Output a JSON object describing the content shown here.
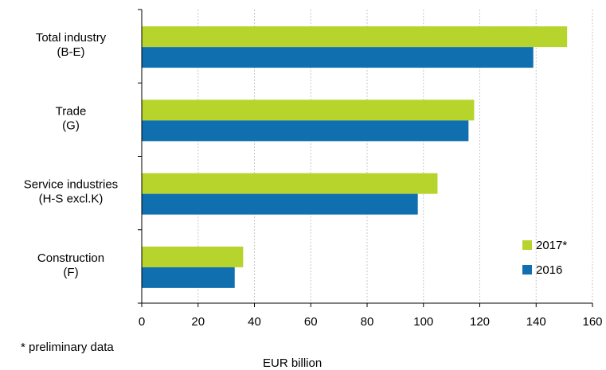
{
  "chart_data": {
    "type": "bar",
    "orientation": "horizontal",
    "categories": [
      [
        "Total industry",
        "(B-E)"
      ],
      [
        "Trade",
        "(G)"
      ],
      [
        "Service industries",
        "(H-S excl.K)"
      ],
      [
        "Construction",
        "(F)"
      ]
    ],
    "series": [
      {
        "name": "2017*",
        "color": "#b6d42c",
        "values": [
          151,
          118,
          105,
          36
        ]
      },
      {
        "name": "2016",
        "color": "#0f6faf",
        "values": [
          139,
          116,
          98,
          33
        ]
      }
    ],
    "xlabel": "EUR billion",
    "xlim": [
      0,
      160
    ],
    "xticks": [
      0,
      20,
      40,
      60,
      80,
      100,
      120,
      140,
      160
    ],
    "grid": "vertical",
    "legend_position": "bottom-right",
    "note": "* preliminary data"
  }
}
